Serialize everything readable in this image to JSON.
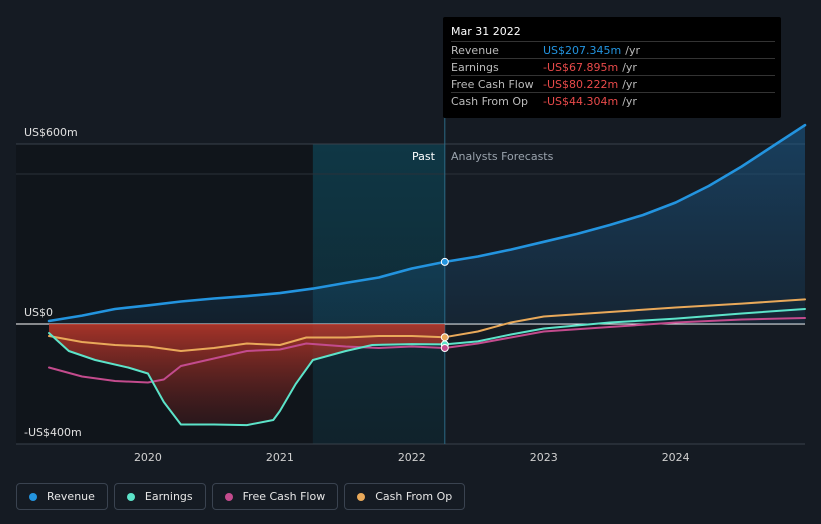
{
  "chart_data": {
    "type": "line",
    "title": "",
    "xlabel": "",
    "ylabel": "",
    "ylim": [
      -400,
      600
    ],
    "y_axis_labels": [
      "US$600m",
      "US$0",
      "-US$400m"
    ],
    "x_ticks": [
      "2020",
      "2021",
      "2022",
      "2023",
      "2024"
    ],
    "regions": {
      "past": "Past",
      "forecast": "Analysts Forecasts"
    },
    "series": [
      {
        "name": "Revenue",
        "color": "#2394df",
        "points": [
          [
            2019.25,
            10
          ],
          [
            2019.5,
            28
          ],
          [
            2019.75,
            50
          ],
          [
            2020.0,
            62
          ],
          [
            2020.25,
            75
          ],
          [
            2020.5,
            85
          ],
          [
            2020.75,
            93
          ],
          [
            2021.0,
            103
          ],
          [
            2021.25,
            118
          ],
          [
            2021.5,
            137
          ],
          [
            2021.75,
            155
          ],
          [
            2022.0,
            185
          ],
          [
            2022.25,
            207
          ],
          [
            2022.5,
            225
          ],
          [
            2022.75,
            248
          ],
          [
            2023.0,
            274
          ],
          [
            2023.25,
            300
          ],
          [
            2023.5,
            330
          ],
          [
            2023.75,
            363
          ],
          [
            2024.0,
            405
          ],
          [
            2024.25,
            460
          ],
          [
            2024.5,
            525
          ],
          [
            2024.75,
            597
          ],
          [
            2024.98,
            663
          ]
        ]
      },
      {
        "name": "Earnings",
        "color": "#5ce3c9",
        "points": [
          [
            2019.25,
            -30
          ],
          [
            2019.4,
            -90
          ],
          [
            2019.6,
            -120
          ],
          [
            2019.85,
            -145
          ],
          [
            2020.0,
            -165
          ],
          [
            2020.12,
            -260
          ],
          [
            2020.25,
            -335
          ],
          [
            2020.5,
            -335
          ],
          [
            2020.75,
            -337
          ],
          [
            2020.95,
            -320
          ],
          [
            2021.0,
            -290
          ],
          [
            2021.12,
            -200
          ],
          [
            2021.25,
            -120
          ],
          [
            2021.5,
            -90
          ],
          [
            2021.7,
            -70
          ],
          [
            2022.0,
            -67
          ],
          [
            2022.25,
            -68
          ],
          [
            2022.5,
            -58
          ],
          [
            2022.75,
            -35
          ],
          [
            2023.0,
            -15
          ],
          [
            2023.5,
            5
          ],
          [
            2024.0,
            18
          ],
          [
            2024.5,
            35
          ],
          [
            2024.98,
            50
          ]
        ]
      },
      {
        "name": "Free Cash Flow",
        "color": "#c34b8d",
        "points": [
          [
            2019.25,
            -145
          ],
          [
            2019.5,
            -175
          ],
          [
            2019.75,
            -190
          ],
          [
            2020.0,
            -195
          ],
          [
            2020.12,
            -185
          ],
          [
            2020.25,
            -140
          ],
          [
            2020.5,
            -115
          ],
          [
            2020.75,
            -90
          ],
          [
            2021.0,
            -85
          ],
          [
            2021.2,
            -65
          ],
          [
            2021.5,
            -75
          ],
          [
            2021.75,
            -80
          ],
          [
            2022.0,
            -75
          ],
          [
            2022.25,
            -80
          ],
          [
            2022.5,
            -65
          ],
          [
            2022.75,
            -45
          ],
          [
            2023.0,
            -25
          ],
          [
            2023.5,
            -10
          ],
          [
            2024.0,
            5
          ],
          [
            2024.5,
            15
          ],
          [
            2024.98,
            20
          ]
        ]
      },
      {
        "name": "Cash From Op",
        "color": "#e9a95a",
        "points": [
          [
            2019.25,
            -40
          ],
          [
            2019.5,
            -60
          ],
          [
            2019.75,
            -70
          ],
          [
            2020.0,
            -75
          ],
          [
            2020.25,
            -90
          ],
          [
            2020.5,
            -80
          ],
          [
            2020.75,
            -65
          ],
          [
            2021.0,
            -70
          ],
          [
            2021.2,
            -45
          ],
          [
            2021.5,
            -45
          ],
          [
            2021.75,
            -40
          ],
          [
            2022.0,
            -40
          ],
          [
            2022.25,
            -44
          ],
          [
            2022.5,
            -25
          ],
          [
            2022.75,
            5
          ],
          [
            2023.0,
            25
          ],
          [
            2023.5,
            40
          ],
          [
            2024.0,
            55
          ],
          [
            2024.5,
            68
          ],
          [
            2024.98,
            82
          ]
        ]
      }
    ],
    "past_end_x": 2022.25,
    "highlight_start_x": 2021.25,
    "data_range_x": [
      2019.25,
      2024.98
    ]
  },
  "tooltip": {
    "date": "Mar 31 2022",
    "rows": [
      {
        "name": "Revenue",
        "value": "US$207.345m",
        "unit": "/yr",
        "color": "#2394df"
      },
      {
        "name": "Earnings",
        "value": "-US$67.895m",
        "unit": "/yr",
        "color": "#e84a4a"
      },
      {
        "name": "Free Cash Flow",
        "value": "-US$80.222m",
        "unit": "/yr",
        "color": "#e84a4a"
      },
      {
        "name": "Cash From Op",
        "value": "-US$44.304m",
        "unit": "/yr",
        "color": "#e84a4a"
      }
    ]
  },
  "legend": [
    {
      "label": "Revenue",
      "color": "#2394df"
    },
    {
      "label": "Earnings",
      "color": "#5ce3c9"
    },
    {
      "label": "Free Cash Flow",
      "color": "#c34b8d"
    },
    {
      "label": "Cash From Op",
      "color": "#e9a95a"
    }
  ]
}
